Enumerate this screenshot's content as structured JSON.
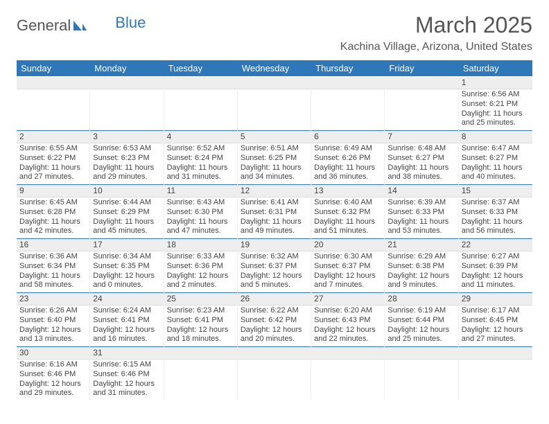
{
  "brand": {
    "text_general": "General",
    "text_blue": "Blue",
    "sail_color": "#2e77b8"
  },
  "header": {
    "title": "March 2025",
    "location": "Kachina Village, Arizona, United States"
  },
  "colors": {
    "header_bg": "#2e77b8",
    "header_text": "#ffffff",
    "daynum_bg": "#eeeeee",
    "row_divider": "#2e77b8",
    "page_bg": "#ffffff",
    "body_text": "#444444"
  },
  "calendar": {
    "type": "table",
    "day_names": [
      "Sunday",
      "Monday",
      "Tuesday",
      "Wednesday",
      "Thursday",
      "Friday",
      "Saturday"
    ],
    "weeks": [
      [
        {
          "blank": true
        },
        {
          "blank": true
        },
        {
          "blank": true
        },
        {
          "blank": true
        },
        {
          "blank": true
        },
        {
          "blank": true
        },
        {
          "day": "1",
          "sunrise": "Sunrise: 6:56 AM",
          "sunset": "Sunset: 6:21 PM",
          "daylight": "Daylight: 11 hours and 25 minutes."
        }
      ],
      [
        {
          "day": "2",
          "sunrise": "Sunrise: 6:55 AM",
          "sunset": "Sunset: 6:22 PM",
          "daylight": "Daylight: 11 hours and 27 minutes."
        },
        {
          "day": "3",
          "sunrise": "Sunrise: 6:53 AM",
          "sunset": "Sunset: 6:23 PM",
          "daylight": "Daylight: 11 hours and 29 minutes."
        },
        {
          "day": "4",
          "sunrise": "Sunrise: 6:52 AM",
          "sunset": "Sunset: 6:24 PM",
          "daylight": "Daylight: 11 hours and 31 minutes."
        },
        {
          "day": "5",
          "sunrise": "Sunrise: 6:51 AM",
          "sunset": "Sunset: 6:25 PM",
          "daylight": "Daylight: 11 hours and 34 minutes."
        },
        {
          "day": "6",
          "sunrise": "Sunrise: 6:49 AM",
          "sunset": "Sunset: 6:26 PM",
          "daylight": "Daylight: 11 hours and 36 minutes."
        },
        {
          "day": "7",
          "sunrise": "Sunrise: 6:48 AM",
          "sunset": "Sunset: 6:27 PM",
          "daylight": "Daylight: 11 hours and 38 minutes."
        },
        {
          "day": "8",
          "sunrise": "Sunrise: 6:47 AM",
          "sunset": "Sunset: 6:27 PM",
          "daylight": "Daylight: 11 hours and 40 minutes."
        }
      ],
      [
        {
          "day": "9",
          "sunrise": "Sunrise: 6:45 AM",
          "sunset": "Sunset: 6:28 PM",
          "daylight": "Daylight: 11 hours and 42 minutes."
        },
        {
          "day": "10",
          "sunrise": "Sunrise: 6:44 AM",
          "sunset": "Sunset: 6:29 PM",
          "daylight": "Daylight: 11 hours and 45 minutes."
        },
        {
          "day": "11",
          "sunrise": "Sunrise: 6:43 AM",
          "sunset": "Sunset: 6:30 PM",
          "daylight": "Daylight: 11 hours and 47 minutes."
        },
        {
          "day": "12",
          "sunrise": "Sunrise: 6:41 AM",
          "sunset": "Sunset: 6:31 PM",
          "daylight": "Daylight: 11 hours and 49 minutes."
        },
        {
          "day": "13",
          "sunrise": "Sunrise: 6:40 AM",
          "sunset": "Sunset: 6:32 PM",
          "daylight": "Daylight: 11 hours and 51 minutes."
        },
        {
          "day": "14",
          "sunrise": "Sunrise: 6:39 AM",
          "sunset": "Sunset: 6:33 PM",
          "daylight": "Daylight: 11 hours and 53 minutes."
        },
        {
          "day": "15",
          "sunrise": "Sunrise: 6:37 AM",
          "sunset": "Sunset: 6:33 PM",
          "daylight": "Daylight: 11 hours and 56 minutes."
        }
      ],
      [
        {
          "day": "16",
          "sunrise": "Sunrise: 6:36 AM",
          "sunset": "Sunset: 6:34 PM",
          "daylight": "Daylight: 11 hours and 58 minutes."
        },
        {
          "day": "17",
          "sunrise": "Sunrise: 6:34 AM",
          "sunset": "Sunset: 6:35 PM",
          "daylight": "Daylight: 12 hours and 0 minutes."
        },
        {
          "day": "18",
          "sunrise": "Sunrise: 6:33 AM",
          "sunset": "Sunset: 6:36 PM",
          "daylight": "Daylight: 12 hours and 2 minutes."
        },
        {
          "day": "19",
          "sunrise": "Sunrise: 6:32 AM",
          "sunset": "Sunset: 6:37 PM",
          "daylight": "Daylight: 12 hours and 5 minutes."
        },
        {
          "day": "20",
          "sunrise": "Sunrise: 6:30 AM",
          "sunset": "Sunset: 6:37 PM",
          "daylight": "Daylight: 12 hours and 7 minutes."
        },
        {
          "day": "21",
          "sunrise": "Sunrise: 6:29 AM",
          "sunset": "Sunset: 6:38 PM",
          "daylight": "Daylight: 12 hours and 9 minutes."
        },
        {
          "day": "22",
          "sunrise": "Sunrise: 6:27 AM",
          "sunset": "Sunset: 6:39 PM",
          "daylight": "Daylight: 12 hours and 11 minutes."
        }
      ],
      [
        {
          "day": "23",
          "sunrise": "Sunrise: 6:26 AM",
          "sunset": "Sunset: 6:40 PM",
          "daylight": "Daylight: 12 hours and 13 minutes."
        },
        {
          "day": "24",
          "sunrise": "Sunrise: 6:24 AM",
          "sunset": "Sunset: 6:41 PM",
          "daylight": "Daylight: 12 hours and 16 minutes."
        },
        {
          "day": "25",
          "sunrise": "Sunrise: 6:23 AM",
          "sunset": "Sunset: 6:41 PM",
          "daylight": "Daylight: 12 hours and 18 minutes."
        },
        {
          "day": "26",
          "sunrise": "Sunrise: 6:22 AM",
          "sunset": "Sunset: 6:42 PM",
          "daylight": "Daylight: 12 hours and 20 minutes."
        },
        {
          "day": "27",
          "sunrise": "Sunrise: 6:20 AM",
          "sunset": "Sunset: 6:43 PM",
          "daylight": "Daylight: 12 hours and 22 minutes."
        },
        {
          "day": "28",
          "sunrise": "Sunrise: 6:19 AM",
          "sunset": "Sunset: 6:44 PM",
          "daylight": "Daylight: 12 hours and 25 minutes."
        },
        {
          "day": "29",
          "sunrise": "Sunrise: 6:17 AM",
          "sunset": "Sunset: 6:45 PM",
          "daylight": "Daylight: 12 hours and 27 minutes."
        }
      ],
      [
        {
          "day": "30",
          "sunrise": "Sunrise: 6:16 AM",
          "sunset": "Sunset: 6:46 PM",
          "daylight": "Daylight: 12 hours and 29 minutes."
        },
        {
          "day": "31",
          "sunrise": "Sunrise: 6:15 AM",
          "sunset": "Sunset: 6:46 PM",
          "daylight": "Daylight: 12 hours and 31 minutes."
        },
        {
          "blank": true
        },
        {
          "blank": true
        },
        {
          "blank": true
        },
        {
          "blank": true
        },
        {
          "blank": true
        }
      ]
    ]
  }
}
